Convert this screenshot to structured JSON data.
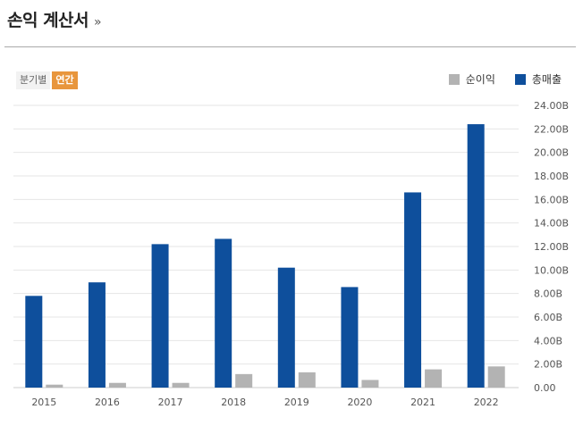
{
  "header": {
    "title": "손익 계산서",
    "more": "»"
  },
  "toggle": {
    "quarterly": "분기별",
    "annual": "연간"
  },
  "colors": {
    "net_income": "#b3b3b3",
    "revenue": "#0e4f9c",
    "accent": "#e8963d"
  },
  "chart_data": {
    "type": "bar",
    "categories": [
      "2015",
      "2016",
      "2017",
      "2018",
      "2019",
      "2020",
      "2021",
      "2022"
    ],
    "series": [
      {
        "name": "총매출",
        "values": [
          7.8,
          8.95,
          12.2,
          12.65,
          10.2,
          8.55,
          16.6,
          22.4
        ]
      },
      {
        "name": "순이익",
        "values": [
          0.25,
          0.4,
          0.4,
          1.15,
          1.3,
          0.65,
          1.55,
          1.8
        ]
      }
    ],
    "legend_order": [
      "순이익",
      "총매출"
    ],
    "legend_position": "top-right",
    "yticks": [
      "0.00",
      "2.00B",
      "4.00B",
      "6.00B",
      "8.00B",
      "10.00B",
      "12.00B",
      "14.00B",
      "16.00B",
      "18.00B",
      "20.00B",
      "22.00B",
      "24.00B"
    ],
    "ylim": [
      0,
      24
    ],
    "y_unit": "B",
    "y_axis_position": "right",
    "grid": true
  }
}
